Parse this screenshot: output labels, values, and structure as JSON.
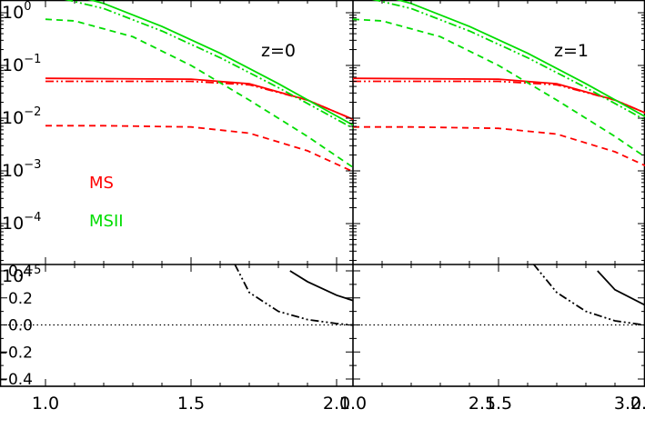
{
  "chart_data": [
    {
      "type": "line",
      "panel": "left-top",
      "annotation": "z=0",
      "x_scale": "linear",
      "y_scale": "log",
      "xlim": [
        1.0,
        3.1
      ],
      "ylim": [
        2e-06,
        1.5
      ],
      "y_ticks": [
        {
          "value": 1,
          "base": "10",
          "exp": "0"
        },
        {
          "value": 0.1,
          "base": "10",
          "exp": "−1"
        },
        {
          "value": 0.01,
          "base": "10",
          "exp": "−2"
        },
        {
          "value": 0.001,
          "base": "10",
          "exp": "−3"
        },
        {
          "value": 0.0001,
          "base": "10",
          "exp": "−4"
        },
        {
          "value": 1e-05,
          "base": "10",
          "exp": "−5"
        }
      ],
      "legend": [
        {
          "label": "MS",
          "color": "#ff0000"
        },
        {
          "label": "MSII",
          "color": "#00dd00"
        }
      ],
      "series": [
        {
          "group": "MS",
          "style": "solid",
          "color": "#ff0000",
          "x": [
            1.0,
            1.5,
            1.7,
            1.9,
            2.1,
            2.3,
            2.5,
            2.7,
            2.8,
            2.87,
            2.92
          ],
          "y": [
            0.057,
            0.055,
            0.045,
            0.022,
            0.0075,
            0.0021,
            0.00055,
            0.00011,
            3e-05,
            8.5e-06,
            3e-06
          ]
        },
        {
          "group": "MS",
          "style": "dash-dot-dot",
          "color": "#ff0000",
          "x": [
            1.0,
            1.5,
            1.7,
            1.9,
            2.1,
            2.3,
            2.5,
            2.7,
            2.8,
            2.87,
            2.92
          ],
          "y": [
            0.05,
            0.05,
            0.043,
            0.022,
            0.0075,
            0.0021,
            0.00055,
            0.00011,
            3e-05,
            8.5e-06,
            3e-06
          ]
        },
        {
          "group": "MS",
          "style": "dashed",
          "color": "#ff0000",
          "x": [
            1.0,
            1.2,
            1.5,
            1.7,
            1.9,
            2.1,
            2.3,
            2.45,
            2.55,
            2.65,
            2.72,
            2.77
          ],
          "y": [
            0.0072,
            0.0072,
            0.0068,
            0.0052,
            0.0024,
            0.00075,
            0.00019,
            6e-05,
            2e-05,
            6.5e-06,
            2.8e-06,
            1.5e-06
          ]
        },
        {
          "group": "MSII",
          "style": "solid",
          "color": "#00dd00",
          "x": [
            1.0,
            1.2,
            1.4,
            1.6,
            1.8,
            2.0,
            2.2,
            2.4,
            2.6,
            2.8,
            2.9,
            3.0
          ],
          "y": [
            3.0,
            1.5,
            0.55,
            0.17,
            0.045,
            0.011,
            0.0027,
            0.0006,
            0.00013,
            2.6e-05,
            8.5e-06,
            2.5e-06
          ]
        },
        {
          "group": "MSII",
          "style": "dash-dot-dot",
          "color": "#00dd00",
          "x": [
            1.0,
            1.2,
            1.4,
            1.6,
            1.8,
            2.0,
            2.2,
            2.4,
            2.6,
            2.8,
            2.9,
            3.0
          ],
          "y": [
            2.2,
            1.2,
            0.45,
            0.14,
            0.038,
            0.0095,
            0.0024,
            0.00055,
            0.00012,
            2.4e-05,
            7.8e-06,
            2.3e-06
          ]
        },
        {
          "group": "MSII",
          "style": "dashed",
          "color": "#00dd00",
          "x": [
            1.0,
            1.1,
            1.3,
            1.5,
            1.7,
            1.9,
            2.1,
            2.3,
            2.5,
            2.65,
            2.75,
            2.8
          ],
          "y": [
            0.75,
            0.7,
            0.35,
            0.1,
            0.022,
            0.0045,
            0.0008,
            0.00013,
            2e-05,
            5e-06,
            2.2e-06,
            1.3e-06
          ]
        }
      ]
    },
    {
      "type": "line",
      "panel": "right-top",
      "annotation": "z=1",
      "x_scale": "linear",
      "y_scale": "log",
      "xlim": [
        1.0,
        3.1
      ],
      "ylim": [
        2e-06,
        1.5
      ],
      "series": [
        {
          "group": "MS",
          "style": "solid",
          "color": "#ff0000",
          "x": [
            1.0,
            1.5,
            1.7,
            1.9,
            2.1,
            2.3,
            2.5,
            2.7,
            2.8,
            2.87,
            2.92
          ],
          "y": [
            0.057,
            0.055,
            0.045,
            0.022,
            0.0075,
            0.0021,
            0.00055,
            0.00011,
            3e-05,
            8.5e-06,
            3e-06
          ]
        },
        {
          "group": "MS",
          "style": "dash-dot-dot",
          "color": "#ff0000",
          "x": [
            1.0,
            1.5,
            1.7,
            1.9,
            2.1,
            2.3,
            2.5,
            2.7,
            2.8,
            2.87,
            2.92
          ],
          "y": [
            0.05,
            0.05,
            0.043,
            0.022,
            0.0075,
            0.0021,
            0.00055,
            0.00011,
            3e-05,
            8.5e-06,
            3e-06
          ]
        },
        {
          "group": "MS",
          "style": "dashed",
          "color": "#ff0000",
          "x": [
            1.0,
            1.2,
            1.5,
            1.7,
            1.9,
            2.1,
            2.3,
            2.45,
            2.55,
            2.65,
            2.72,
            2.77
          ],
          "y": [
            0.0068,
            0.0068,
            0.0064,
            0.005,
            0.0023,
            0.00072,
            0.00018,
            5.5e-05,
            1.8e-05,
            6e-06,
            2.6e-06,
            1.4e-06
          ]
        },
        {
          "group": "MSII",
          "style": "solid",
          "color": "#00dd00",
          "x": [
            1.0,
            1.2,
            1.4,
            1.6,
            1.8,
            2.0,
            2.2,
            2.4,
            2.6,
            2.8,
            2.9,
            3.0
          ],
          "y": [
            3.0,
            1.5,
            0.55,
            0.17,
            0.045,
            0.011,
            0.0027,
            0.0006,
            0.00013,
            2.6e-05,
            8.5e-06,
            2.5e-06
          ]
        },
        {
          "group": "MSII",
          "style": "dash-dot-dot",
          "color": "#00dd00",
          "x": [
            1.0,
            1.2,
            1.4,
            1.6,
            1.8,
            2.0,
            2.2,
            2.4,
            2.6,
            2.8,
            2.9,
            3.0
          ],
          "y": [
            2.2,
            1.2,
            0.45,
            0.14,
            0.038,
            0.0095,
            0.0024,
            0.00055,
            0.00012,
            2.4e-05,
            7.8e-06,
            2.3e-06
          ]
        },
        {
          "group": "MSII",
          "style": "dashed",
          "color": "#00dd00",
          "x": [
            1.0,
            1.1,
            1.3,
            1.5,
            1.7,
            1.9,
            2.1,
            2.3,
            2.5,
            2.65,
            2.75,
            2.8
          ],
          "y": [
            0.75,
            0.7,
            0.35,
            0.1,
            0.022,
            0.0045,
            0.0008,
            0.00013,
            2e-05,
            5e-06,
            2.2e-06,
            1.3e-06
          ]
        }
      ]
    },
    {
      "type": "line",
      "panel": "left-bottom",
      "x_scale": "linear",
      "xlim": [
        1.0,
        3.1
      ],
      "ylim": [
        -0.45,
        0.45
      ],
      "x_ticks": [
        "1.0",
        "1.5",
        "2.0",
        "2.5",
        "3.0"
      ],
      "y_ticks": [
        "0.4",
        "0.2",
        "0.0",
        "−0.2",
        "−0.4"
      ],
      "reference_line": {
        "y": 0.0,
        "style": "dotted"
      },
      "series": [
        {
          "style": "solid",
          "color": "#000000",
          "x": [
            1.84,
            1.9,
            2.0,
            2.1,
            2.2,
            2.3,
            2.4,
            2.5,
            2.6,
            2.7,
            2.75,
            2.85,
            2.9,
            2.95,
            3.0,
            3.05
          ],
          "y": [
            0.4,
            0.32,
            0.22,
            0.15,
            0.1,
            0.06,
            0.03,
            0.01,
            0.03,
            0.06,
            0.04,
            -0.24,
            -0.28,
            0.32,
            0.28,
            0.18
          ]
        },
        {
          "style": "dashed",
          "color": "#000000",
          "x": [
            2.13,
            2.2,
            2.3,
            2.4,
            2.5,
            2.6,
            2.7,
            2.75,
            2.85,
            2.9,
            2.95,
            3.0
          ],
          "y": [
            0.4,
            0.33,
            0.24,
            0.16,
            0.1,
            0.06,
            0.04,
            0.02,
            -0.14,
            -0.2,
            0.3,
            0.32
          ]
        },
        {
          "style": "dash-dot-dot",
          "color": "#000000",
          "x": [
            1.65,
            1.7,
            1.8,
            1.9,
            2.0,
            2.1,
            2.2,
            2.3,
            2.4,
            2.5,
            2.6,
            2.7,
            2.75,
            2.85,
            2.9,
            2.95,
            3.0
          ],
          "y": [
            0.45,
            0.24,
            0.1,
            0.04,
            0.01,
            -0.01,
            -0.02,
            -0.03,
            -0.02,
            0.0,
            0.03,
            0.06,
            0.01,
            -0.16,
            -0.22,
            0.3,
            0.32
          ]
        }
      ]
    },
    {
      "type": "line",
      "panel": "right-bottom",
      "x_scale": "linear",
      "xlim": [
        1.0,
        3.1
      ],
      "ylim": [
        -0.45,
        0.45
      ],
      "x_ticks": [
        "1.0",
        "1.5",
        "2.0",
        "2.5",
        "3.0"
      ],
      "reference_line": {
        "y": 0.0,
        "style": "dotted"
      },
      "series": [
        {
          "style": "solid",
          "color": "#000000",
          "x": [
            1.84,
            1.9,
            2.0,
            2.1,
            2.2,
            2.3,
            2.4,
            2.5,
            2.6,
            2.7,
            2.75,
            2.8,
            2.9
          ],
          "y": [
            0.4,
            0.26,
            0.15,
            0.09,
            0.05,
            0.02,
            0.0,
            -0.03,
            0.02,
            0.07,
            -0.12,
            -0.38,
            -0.16
          ]
        },
        {
          "style": "dashed",
          "color": "#000000",
          "x": [
            2.12,
            2.2,
            2.3,
            2.4,
            2.5,
            2.6,
            2.7,
            2.75,
            2.8,
            2.85,
            2.9
          ],
          "y": [
            0.4,
            0.3,
            0.2,
            0.13,
            0.08,
            0.06,
            0.07,
            0.45,
            -0.36,
            -0.26,
            -0.14
          ]
        },
        {
          "style": "dash-dot-dot",
          "color": "#000000",
          "x": [
            1.62,
            1.7,
            1.8,
            1.9,
            2.0,
            2.1,
            2.2,
            2.3,
            2.4,
            2.5,
            2.6,
            2.7,
            2.75,
            2.8,
            2.9
          ],
          "y": [
            0.45,
            0.24,
            0.1,
            0.03,
            0.0,
            -0.02,
            -0.03,
            -0.04,
            -0.04,
            -0.03,
            -0.02,
            0.01,
            -0.2,
            -0.34,
            -0.14
          ]
        }
      ]
    }
  ]
}
